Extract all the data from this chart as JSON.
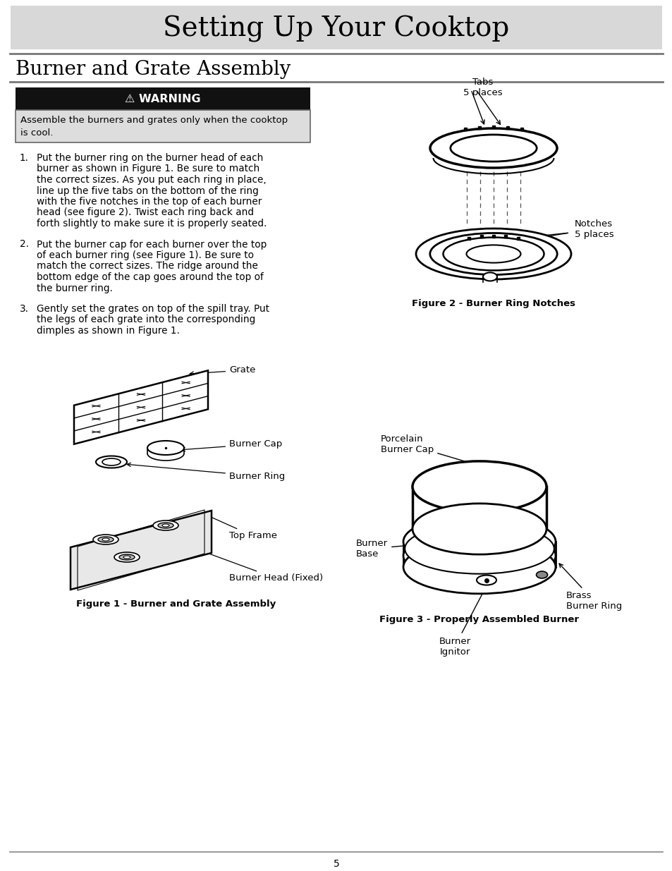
{
  "title": "Setting Up Your Cooktop",
  "subtitle": "Burner and Grate Assembly",
  "warning_title": "⚠ WARNING",
  "warning_text1": "Assemble the burners and grates only when the cooktop",
  "warning_text2": "is cool.",
  "steps": [
    [
      "1.",
      "Put the burner ring on the burner head of each\nburner as shown in Figure 1. Be sure to match\nthe correct sizes. As you put each ring in place,\nline up the five tabs on the bottom of the ring\nwith the five notches in the top of each burner\nhead (see figure 2). Twist each ring back and\nforth slightly to make sure it is properly seated."
    ],
    [
      "2.",
      "Put the burner cap for each burner over the top\nof each burner ring (see Figure 1). Be sure to\nmatch the correct sizes. The ridge around the\nbottom edge of the cap goes around the top of\nthe burner ring."
    ],
    [
      "3.",
      "Gently set the grates on top of the spill tray. Put\nthe legs of each grate into the corresponding\ndimples as shown in Figure 1."
    ]
  ],
  "fig1_caption": "Figure 1 - Burner and Grate Assembly",
  "fig2_caption": "Figure 2 - Burner Ring Notches",
  "fig3_caption": "Figure 3 - Properly Assembled Burner",
  "fig2_label1": "Tabs\n5 places",
  "fig2_label2": "Notches\n5 places",
  "fig3_labels": [
    "Porcelain\nBurner Cap",
    "Burner\nBase",
    "Burner\nIgnitor",
    "Brass\nBurner Ring"
  ],
  "fig1_labels": [
    "Grate",
    "Burner Cap",
    "Burner Ring",
    "Top Frame",
    "Burner Head (Fixed)"
  ],
  "page_number": "5",
  "bg_color": "#ffffff",
  "title_bg": "#d8d8d8",
  "warning_bg": "#111111",
  "warning_body_bg": "#dddddd",
  "text_color": "#000000"
}
